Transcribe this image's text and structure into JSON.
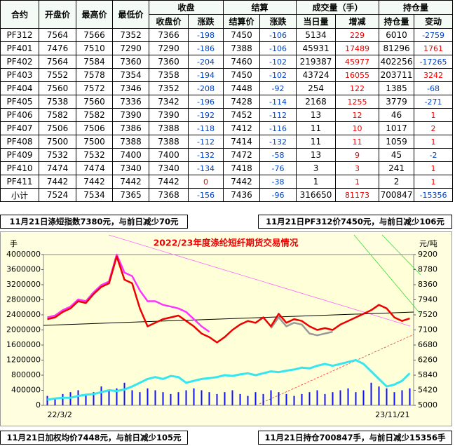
{
  "table": {
    "header_top": [
      "合约",
      "开盘价",
      "最高价",
      "最低价",
      "收盘",
      "结算",
      "成交量（手）",
      "持仓量"
    ],
    "header_sub": [
      "收盘价",
      "涨跌",
      "结算价",
      "涨跌",
      "当日量",
      "增减",
      "持仓量",
      "变动"
    ],
    "rows": [
      [
        "PF312",
        7564,
        7566,
        7352,
        7366,
        -198,
        7450,
        -106,
        5134,
        229,
        6010,
        -2759
      ],
      [
        "PF401",
        7476,
        7510,
        7290,
        7290,
        -186,
        7388,
        -106,
        45931,
        17489,
        81296,
        1761
      ],
      [
        "PF402",
        7564,
        7584,
        7360,
        7360,
        -204,
        7460,
        -102,
        219387,
        45977,
        402256,
        -17265
      ],
      [
        "PF403",
        7552,
        7578,
        7354,
        7358,
        -194,
        7450,
        -102,
        43724,
        16055,
        203711,
        3242
      ],
      [
        "PF404",
        7560,
        7572,
        7346,
        7352,
        -208,
        7448,
        -92,
        254,
        122,
        1385,
        -68
      ],
      [
        "PF405",
        7538,
        7560,
        7336,
        7342,
        -196,
        7428,
        -114,
        2168,
        1255,
        3779,
        -271
      ],
      [
        "PF406",
        7582,
        7582,
        7390,
        7390,
        -192,
        7452,
        -112,
        13,
        12,
        46,
        1
      ],
      [
        "PF407",
        7506,
        7506,
        7386,
        7388,
        -118,
        7412,
        -116,
        11,
        10,
        1017,
        2
      ],
      [
        "PF408",
        7500,
        7500,
        7388,
        7388,
        -112,
        7414,
        -132,
        11,
        11,
        1059,
        1
      ],
      [
        "PF409",
        7532,
        7532,
        7400,
        7400,
        -132,
        7472,
        -58,
        13,
        9,
        45,
        -2
      ],
      [
        "PF410",
        7474,
        7474,
        7340,
        7340,
        -134,
        7418,
        -76,
        3,
        3,
        241,
        1
      ],
      [
        "PF411",
        7442,
        7442,
        7442,
        7442,
        0,
        7442,
        -38,
        1,
        1,
        2,
        1
      ],
      [
        "小计",
        7524,
        7534,
        7365,
        7368,
        -156,
        7436,
        -96,
        316650,
        81173,
        700847,
        -15356
      ]
    ]
  },
  "notes_top": [
    "11月21日涤短指数7380元，与前日减少70元",
    "11月21日PF312价7450元，与前日减少106元"
  ],
  "notes_bottom": [
    "11月21日加权均价7448元，与前日减少105元",
    "11月21日持仓700847手，与前日减少15356手"
  ],
  "chart_data": {
    "type": "combo",
    "title": "2022/23年度涤纶短纤期货交易情况",
    "y_label": "手",
    "y2_label": "元/吨",
    "categories": [
      "22/3/2",
      null,
      null,
      null,
      null,
      null,
      null,
      null,
      null,
      null,
      null,
      null,
      null,
      null,
      null,
      null,
      null,
      null,
      null,
      null,
      null,
      null,
      null,
      null,
      null,
      null,
      null,
      null,
      null,
      null,
      null,
      null,
      null,
      null,
      null,
      null,
      null,
      null,
      null,
      null,
      null,
      null,
      null,
      null,
      null,
      null,
      null,
      "23/11/21"
    ],
    "ylim": [
      0,
      4000000
    ],
    "yticks": [
      0,
      400000,
      800000,
      1200000,
      1600000,
      2000000,
      2400000,
      2800000,
      3200000,
      3600000,
      4000000
    ],
    "y2lim": [
      5000,
      9200
    ],
    "y2ticks": [
      5000,
      5420,
      5840,
      6260,
      6680,
      7100,
      7520,
      7940,
      8360,
      8780,
      9200
    ],
    "series": [
      {
        "type": "bar",
        "color": "#1010ff",
        "values": [
          250000,
          200000,
          300000,
          350000,
          400000,
          300000,
          350000,
          500000,
          400000,
          450000,
          600000,
          400000,
          350000,
          450000,
          400000,
          350000,
          300000,
          350000,
          400000,
          450000,
          400000,
          350000,
          300000,
          350000,
          400000,
          300000,
          250000,
          350000,
          300000,
          400000,
          350000,
          300000,
          250000,
          300000,
          350000,
          400000,
          300000,
          350000,
          400000,
          450000,
          350000,
          400000,
          600000,
          500000,
          450000,
          350000,
          400000,
          450000
        ]
      },
      {
        "type": "line",
        "color": "#33e6f0",
        "values": [
          150000,
          180000,
          200000,
          200000,
          250000,
          280000,
          300000,
          350000,
          400000,
          380000,
          420000,
          500000,
          600000,
          700000,
          750000,
          700000,
          780000,
          750000,
          600000,
          650000,
          700000,
          720000,
          750000,
          800000,
          780000,
          820000,
          850000,
          800000,
          850000,
          900000,
          880000,
          920000,
          950000,
          1000000,
          980000,
          1050000,
          1100000,
          1050000,
          1100000,
          1150000,
          1200000,
          1100000,
          900000,
          700000,
          500000,
          550000,
          650000,
          850000
        ]
      },
      {
        "type": "line",
        "axis": "y2",
        "color": "#ff33ff",
        "values": [
          7450,
          7500,
          7650,
          7750,
          7950,
          7900,
          8150,
          8350,
          8450,
          9200,
          8700,
          8600,
          8200,
          7900,
          7900,
          7800,
          7750,
          7700,
          7600,
          7400,
          7200,
          7050,
          null,
          null,
          null,
          null,
          null,
          null,
          null,
          null,
          null,
          null,
          null,
          null,
          null,
          null,
          null,
          null,
          null,
          null,
          null,
          null,
          null,
          null,
          null,
          null,
          null,
          null
        ]
      },
      {
        "type": "line",
        "axis": "y2",
        "color": "#999999",
        "values": [
          null,
          null,
          null,
          null,
          null,
          null,
          null,
          null,
          null,
          null,
          null,
          null,
          null,
          null,
          null,
          null,
          null,
          null,
          null,
          null,
          null,
          null,
          null,
          null,
          null,
          null,
          null,
          null,
          null,
          7150,
          7450,
          7200,
          7300,
          7250,
          7000,
          6950,
          7000,
          7050,
          null,
          null,
          null,
          null,
          null,
          null,
          null,
          null,
          null,
          null
        ]
      },
      {
        "type": "line",
        "axis": "y2",
        "color": "#ee0000",
        "values": [
          7400,
          7450,
          7600,
          7700,
          7900,
          7850,
          8100,
          8300,
          8400,
          9150,
          8500,
          8400,
          7700,
          7200,
          7300,
          7400,
          7450,
          7500,
          7350,
          7200,
          7000,
          6900,
          6750,
          6900,
          7100,
          7250,
          7350,
          7300,
          7450,
          7200,
          7550,
          7300,
          7400,
          7350,
          7200,
          7100,
          7150,
          7100,
          7250,
          7350,
          7450,
          7550,
          7650,
          7800,
          7700,
          7450,
          7350,
          7420
        ]
      }
    ]
  }
}
